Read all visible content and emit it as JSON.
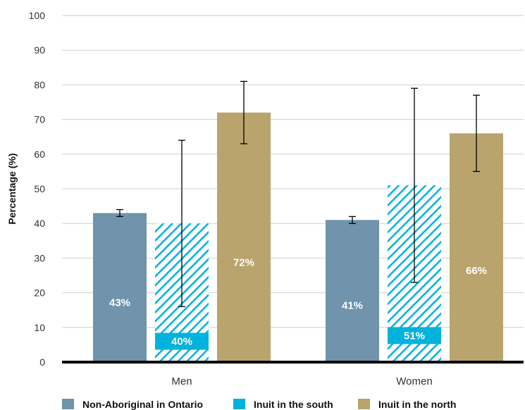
{
  "chart_data": {
    "type": "bar",
    "categories": [
      "Men",
      "Women"
    ],
    "ylabel": "Percentage (%)",
    "xlabel": "",
    "ylim": [
      0,
      100
    ],
    "yticks": [
      0,
      10,
      20,
      30,
      40,
      50,
      60,
      70,
      80,
      90,
      100
    ],
    "grid": true,
    "legend_position": "bottom",
    "series": [
      {
        "name": "Non-Aboriginal in Ontario",
        "color": "#6f94ab",
        "pattern": "solid",
        "values": [
          43,
          41
        ],
        "labels": [
          "43%",
          "41%"
        ],
        "error_low": [
          42,
          40
        ],
        "error_high": [
          44,
          42
        ]
      },
      {
        "name": "Inuit in the south",
        "color": "#00b2dc",
        "pattern": "hatched",
        "values": [
          40,
          51
        ],
        "labels": [
          "40%",
          "51%"
        ],
        "error_low": [
          16,
          23
        ],
        "error_high": [
          64,
          79
        ]
      },
      {
        "name": "Inuit in the north",
        "color": "#b9a46e",
        "pattern": "solid",
        "values": [
          72,
          66
        ],
        "labels": [
          "72%",
          "66%"
        ],
        "error_low": [
          63,
          55
        ],
        "error_high": [
          81,
          77
        ]
      }
    ]
  }
}
